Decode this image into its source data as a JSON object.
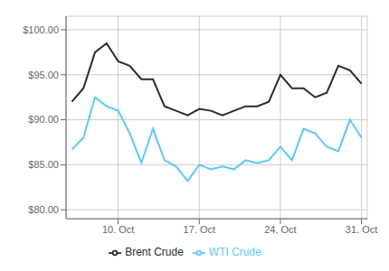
{
  "chart_data": {
    "type": "line",
    "categories": [
      null,
      null,
      null,
      null,
      "10. Oct",
      null,
      null,
      null,
      null,
      null,
      null,
      "17. Oct",
      null,
      null,
      null,
      null,
      null,
      null,
      "24. Oct",
      null,
      null,
      null,
      null,
      null,
      null,
      "31. Oct"
    ],
    "series": [
      {
        "name": "WTI Crude",
        "color": "#5bc8f5",
        "values": [
          86.7,
          88.0,
          92.5,
          91.5,
          91.0,
          88.5,
          85.2,
          89.0,
          85.5,
          84.8,
          83.2,
          85.0,
          84.5,
          84.8,
          84.5,
          85.5,
          85.2,
          85.5,
          87.0,
          85.5,
          89.0,
          88.5,
          87.0,
          86.5,
          90.0,
          88.0
        ]
      },
      {
        "name": "Brent Crude",
        "color": "#2b2b2b",
        "values": [
          92.0,
          93.5,
          97.5,
          98.5,
          96.5,
          96.0,
          94.5,
          94.5,
          91.5,
          91.0,
          90.5,
          91.2,
          91.0,
          90.5,
          91.0,
          91.5,
          91.5,
          92.0,
          95.0,
          93.5,
          93.5,
          92.5,
          93.0,
          96.0,
          95.5,
          94.0
        ]
      }
    ],
    "ylim": [
      79.0,
      101.5
    ],
    "yticks": [
      {
        "value": 80.0,
        "label": "$80.00"
      },
      {
        "value": 85.0,
        "label": "$85.00"
      },
      {
        "value": 90.0,
        "label": "$90.00"
      },
      {
        "value": 95.0,
        "label": "$95.00"
      },
      {
        "value": 100.0,
        "label": "$100.00"
      }
    ],
    "grid": true,
    "legend": "bottom"
  }
}
